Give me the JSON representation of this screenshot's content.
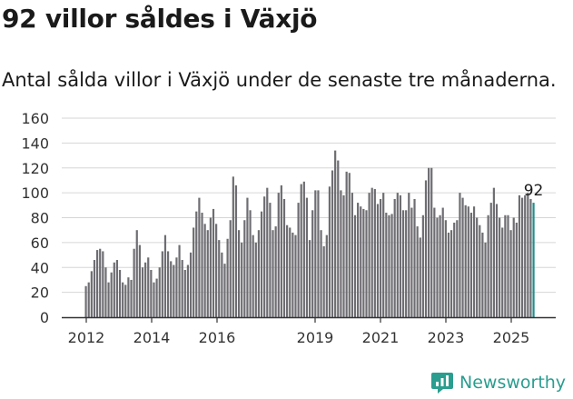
{
  "header": {
    "title": "92 villor såldes i Växjö",
    "subtitle": "Antal sålda villor i Växjö under de senaste tre månaderna."
  },
  "brand": {
    "name": "Newsworthy",
    "icon": "newsworthy-logo-icon",
    "color": "#2a9d8f"
  },
  "colors": {
    "bar": "#6e6d72",
    "highlight": "#1f8f8a",
    "grid": "#d6d6d6"
  },
  "chart_data": {
    "type": "bar",
    "x_ticks": [
      "2012",
      "2014",
      "2016",
      "2019",
      "2021",
      "2023",
      "2025"
    ],
    "ylim": [
      0,
      160
    ],
    "y_ticks": [
      0,
      20,
      40,
      60,
      80,
      100,
      120,
      140,
      160
    ],
    "grid": true,
    "last_value_label": "92",
    "values": [
      25,
      28,
      37,
      46,
      54,
      55,
      53,
      40,
      28,
      36,
      44,
      46,
      38,
      28,
      26,
      32,
      30,
      55,
      70,
      58,
      40,
      44,
      48,
      38,
      28,
      31,
      40,
      53,
      66,
      53,
      45,
      42,
      48,
      58,
      46,
      38,
      42,
      52,
      72,
      85,
      96,
      84,
      75,
      70,
      80,
      87,
      75,
      62,
      52,
      43,
      63,
      78,
      113,
      106,
      70,
      60,
      78,
      96,
      86,
      66,
      60,
      70,
      85,
      97,
      104,
      92,
      70,
      73,
      100,
      106,
      95,
      74,
      72,
      68,
      66,
      92,
      107,
      109,
      96,
      62,
      86,
      102,
      102,
      70,
      57,
      66,
      105,
      118,
      134,
      126,
      102,
      98,
      117,
      116,
      100,
      82,
      92,
      89,
      87,
      86,
      100,
      104,
      103,
      91,
      95,
      100,
      84,
      82,
      83,
      95,
      100,
      98,
      86,
      86,
      100,
      88,
      95,
      73,
      64,
      82,
      110,
      120,
      120,
      88,
      80,
      82,
      88,
      78,
      68,
      70,
      76,
      78,
      100,
      96,
      90,
      89,
      84,
      89,
      80,
      74,
      68,
      60,
      82,
      92,
      104,
      91,
      80,
      72,
      82,
      82,
      70,
      80,
      76,
      98,
      96,
      98,
      100,
      95,
      92
    ]
  }
}
